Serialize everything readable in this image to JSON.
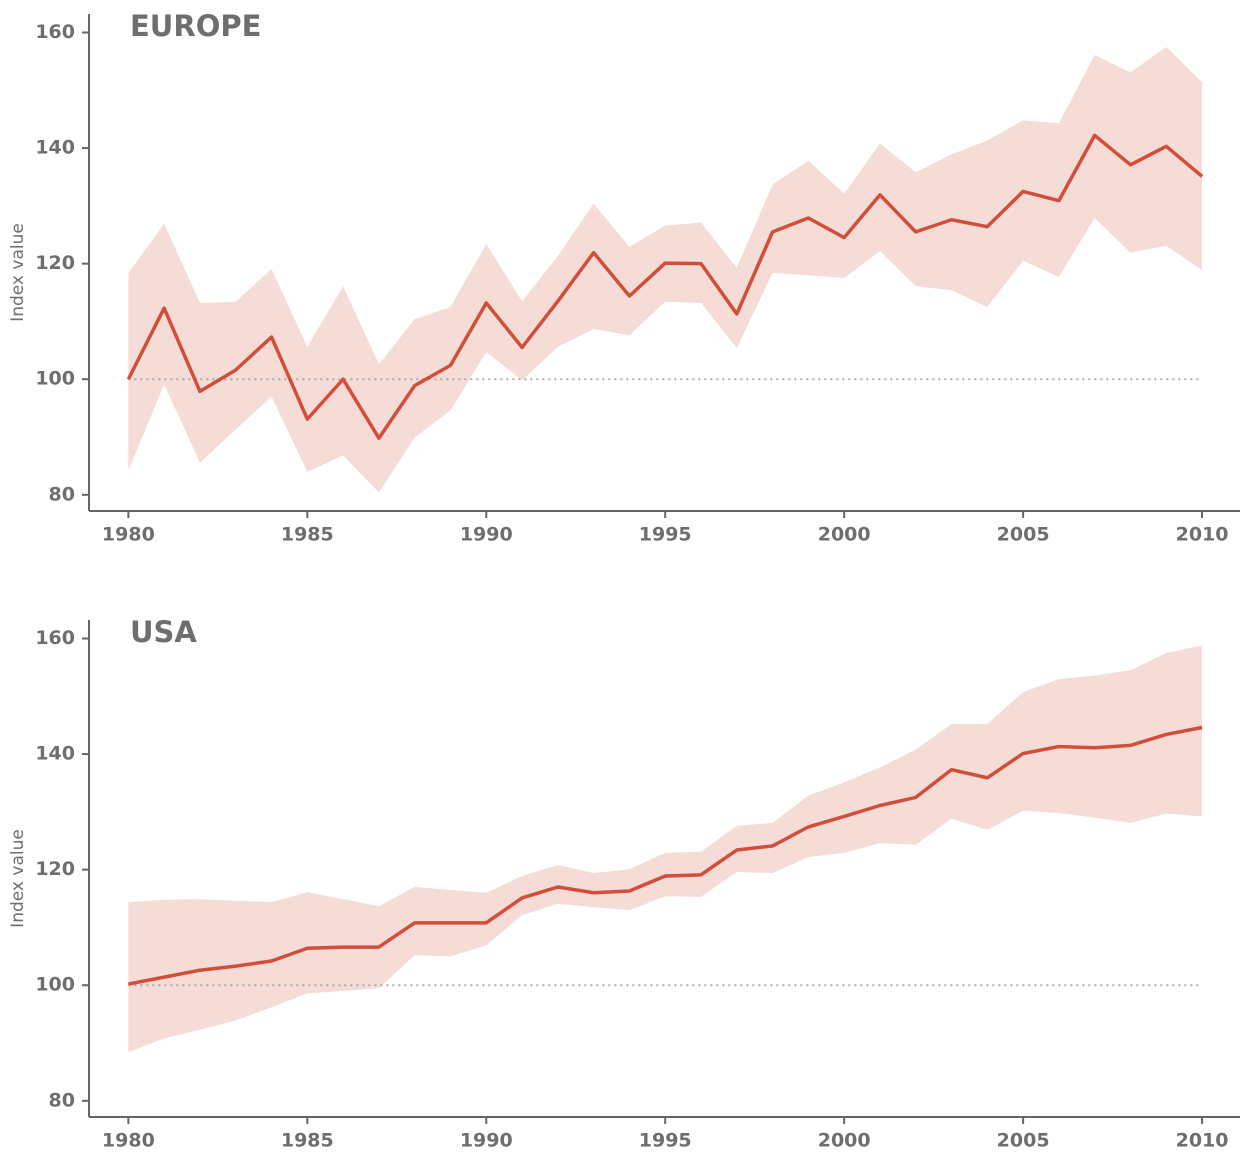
{
  "chart_data": [
    {
      "type": "line",
      "title": "EUROPE",
      "y_label": "Index value",
      "x": [
        1980,
        1981,
        1982,
        1983,
        1984,
        1985,
        1986,
        1987,
        1988,
        1989,
        1990,
        1991,
        1992,
        1993,
        1994,
        1995,
        1996,
        1997,
        1998,
        1999,
        2000,
        2001,
        2002,
        2003,
        2004,
        2005,
        2006,
        2007,
        2008,
        2009,
        2010
      ],
      "values": [
        100,
        112.3,
        97.9,
        101.6,
        107.3,
        93.1,
        100,
        89.8,
        98.9,
        102.4,
        113.2,
        105.5,
        113.5,
        121.9,
        114.4,
        120.1,
        120,
        111.3,
        125.5,
        127.9,
        124.5,
        131.9,
        125.5,
        127.6,
        126.4,
        132.5,
        130.9,
        142.2,
        137.1,
        140.3,
        135.1
      ],
      "upper": [
        118.4,
        126.9,
        113.2,
        113.4,
        119.1,
        105.6,
        116.1,
        102.6,
        110.4,
        112.5,
        123.4,
        113.5,
        121.3,
        130.4,
        122.9,
        126.6,
        127.1,
        119.3,
        133.7,
        137.8,
        132.1,
        140.8,
        135.8,
        138.9,
        141.3,
        144.8,
        144.3,
        156.1,
        153.1,
        157.5,
        151.4
      ],
      "lower": [
        84.2,
        99.1,
        85.6,
        91.3,
        97,
        84,
        86.8,
        80.4,
        89.9,
        94.6,
        104.7,
        99.8,
        105.6,
        108.7,
        107.6,
        113.4,
        113.2,
        105.4,
        118.4,
        118,
        117.5,
        122.2,
        116.1,
        115.4,
        112.5,
        120.5,
        117.7,
        127.9,
        121.9,
        123.1,
        118.9
      ],
      "color": "#d24e3a",
      "band_color": "#f6dcd6",
      "reference_line": 100,
      "xlim": [
        1978.9,
        2011.06
      ],
      "ylim": [
        77.2,
        163.2
      ],
      "xticks": [
        1980,
        1985,
        1990,
        1995,
        2000,
        2005,
        2010
      ],
      "yticks": [
        80,
        100,
        120,
        140,
        160
      ]
    },
    {
      "type": "line",
      "title": "USA",
      "y_label": "Index value",
      "x": [
        1980,
        1981,
        1982,
        1983,
        1984,
        1985,
        1986,
        1987,
        1988,
        1989,
        1990,
        1991,
        1992,
        1993,
        1994,
        1995,
        1996,
        1997,
        1998,
        1999,
        2000,
        2001,
        2002,
        2003,
        2004,
        2005,
        2006,
        2007,
        2008,
        2009,
        2010
      ],
      "values": [
        100.2,
        101.4,
        102.6,
        103.3,
        104.2,
        106.4,
        106.6,
        106.6,
        110.8,
        110.8,
        110.8,
        115.1,
        117,
        116,
        116.3,
        118.9,
        119.1,
        123.4,
        124.1,
        127.4,
        129.2,
        131.1,
        132.5,
        137.3,
        135.9,
        140.1,
        141.3,
        141.1,
        141.5,
        143.4,
        144.6
      ],
      "upper": [
        114.4,
        114.8,
        114.9,
        114.6,
        114.4,
        116.1,
        114.9,
        113.7,
        117,
        116.5,
        116,
        118.9,
        120.8,
        119.4,
        120.1,
        122.9,
        123.1,
        127.6,
        128.1,
        132.8,
        135.1,
        137.7,
        140.8,
        145.2,
        145.2,
        150.7,
        153,
        153.6,
        154.5,
        157.5,
        158.8
      ],
      "lower": [
        88.4,
        90.8,
        92.3,
        93.9,
        96.2,
        98.6,
        99,
        99.5,
        105.2,
        105,
        106.9,
        112.1,
        114.1,
        113.5,
        113,
        115.4,
        115.3,
        119.6,
        119.4,
        122.2,
        122.9,
        124.6,
        124.3,
        128.8,
        126.9,
        130.2,
        129.8,
        129,
        128.1,
        129.7,
        129.2
      ],
      "color": "#d24e3a",
      "band_color": "#f6dcd6",
      "reference_line": 100,
      "xlim": [
        1978.9,
        2011.06
      ],
      "ylim": [
        77.2,
        163.2
      ],
      "xticks": [
        1980,
        1985,
        1990,
        1995,
        2000,
        2005,
        2010
      ],
      "yticks": [
        80,
        100,
        120,
        140,
        160
      ]
    }
  ]
}
